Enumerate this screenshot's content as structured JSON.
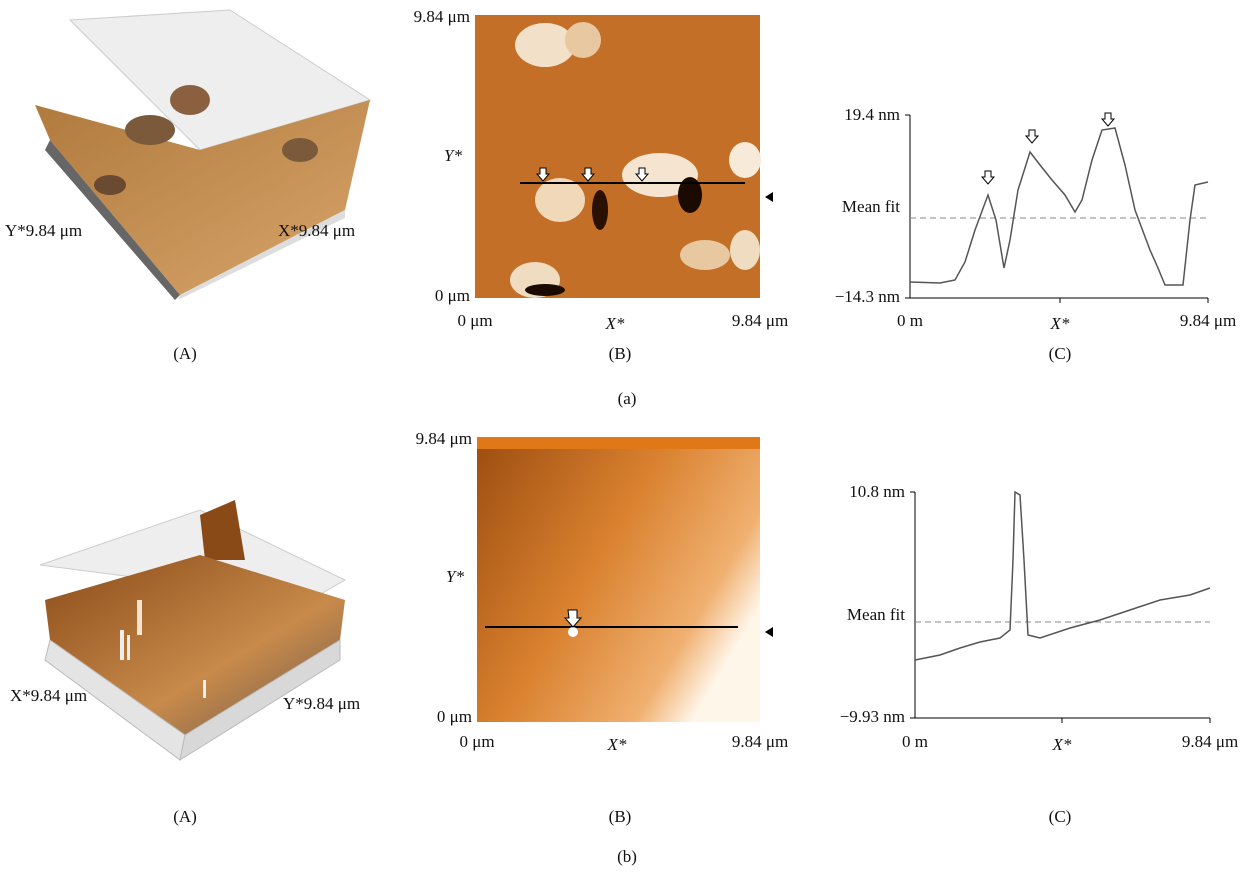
{
  "panels": [
    {
      "label": "(a)",
      "views": [
        {
          "label": "(A)",
          "left_axis": "Y*9.84 μm",
          "right_axis": "X*9.84 μm"
        },
        {
          "label": "(B)",
          "y_top": "9.84 μm",
          "y_axis": "Y*",
          "y_bottom": "0 μm",
          "x_left": "0 μm",
          "x_axis": "X*",
          "x_right": "9.84 μm"
        },
        {
          "label": "(C)",
          "y_top": "19.4 nm",
          "y_mid": "Mean fit",
          "y_bottom": "−14.3 nm",
          "x_left": "0 m",
          "x_axis": "X*",
          "x_right": "9.84 μm"
        }
      ]
    },
    {
      "label": "(b)",
      "views": [
        {
          "label": "(A)",
          "left_axis": "X*9.84 μm",
          "right_axis": "Y*9.84 μm"
        },
        {
          "label": "(B)",
          "y_top": "9.84 μm",
          "y_axis": "Y*",
          "y_bottom": "0 μm",
          "x_left": "0 μm",
          "x_axis": "X*",
          "x_right": "9.84 μm"
        },
        {
          "label": "(C)",
          "y_top": "10.8 nm",
          "y_mid": "Mean fit",
          "y_bottom": "−9.93 nm",
          "x_left": "0 m",
          "x_axis": "X*",
          "x_right": "9.84 μm"
        }
      ]
    }
  ]
}
